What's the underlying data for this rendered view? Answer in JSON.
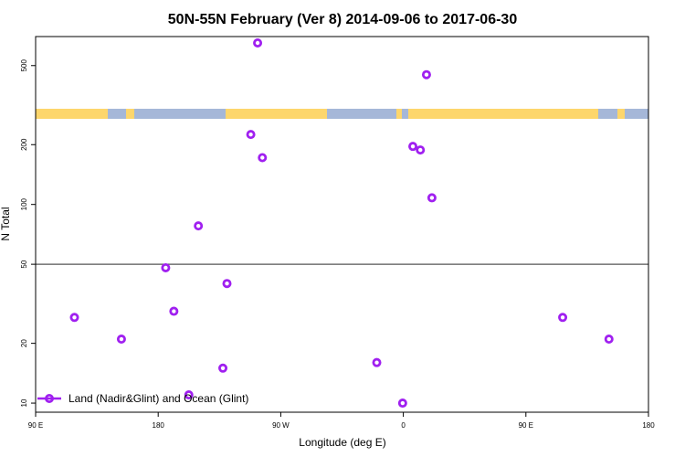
{
  "chart_data": {
    "type": "scatter",
    "title": "50N-55N February (Ver 8)   2014-09-06 to 2017-06-30",
    "xlabel": "Longitude (deg E)",
    "ylabel": "N Total",
    "xlim": [
      90,
      540
    ],
    "ylim": [
      9,
      700
    ],
    "y_scale": "log",
    "x_ticks": [
      {
        "value": 90,
        "label": "90 E"
      },
      {
        "value": 180,
        "label": "180"
      },
      {
        "value": 270,
        "label": "90 W"
      },
      {
        "value": 360,
        "label": "0"
      },
      {
        "value": 450,
        "label": "90 E"
      },
      {
        "value": 540,
        "label": "180"
      }
    ],
    "y_ticks": [
      {
        "value": 10,
        "label": "10"
      },
      {
        "value": 20,
        "label": "20"
      },
      {
        "value": 50,
        "label": "50"
      },
      {
        "value": 100,
        "label": "100"
      },
      {
        "value": 200,
        "label": "200"
      },
      {
        "value": 500,
        "label": "500"
      }
    ],
    "reference_line": 50,
    "series": [
      {
        "name": "Land (Nadir&Glint) and Ocean (Glint)",
        "color": "#a020f0",
        "marker": "open-circle",
        "points": [
          {
            "x": 118.5,
            "y": 27
          },
          {
            "x": 153,
            "y": 21
          },
          {
            "x": 185.5,
            "y": 48
          },
          {
            "x": 191.5,
            "y": 29
          },
          {
            "x": 202.5,
            "y": 11
          },
          {
            "x": 209.5,
            "y": 78
          },
          {
            "x": 227.5,
            "y": 15
          },
          {
            "x": 230.5,
            "y": 40
          },
          {
            "x": 248,
            "y": 225
          },
          {
            "x": 253,
            "y": 650
          },
          {
            "x": 256.5,
            "y": 172
          },
          {
            "x": 340.5,
            "y": 16
          },
          {
            "x": 359.5,
            "y": 10
          },
          {
            "x": 367,
            "y": 196
          },
          {
            "x": 372.5,
            "y": 188
          },
          {
            "x": 377,
            "y": 450
          },
          {
            "x": 381,
            "y": 108
          },
          {
            "x": 477,
            "y": 27
          },
          {
            "x": 511,
            "y": 21
          }
        ]
      }
    ],
    "legend_position": "bottom-left",
    "background_band": {
      "land_color": "#fdd66c",
      "ocean_color": "#a5b7d8"
    }
  }
}
